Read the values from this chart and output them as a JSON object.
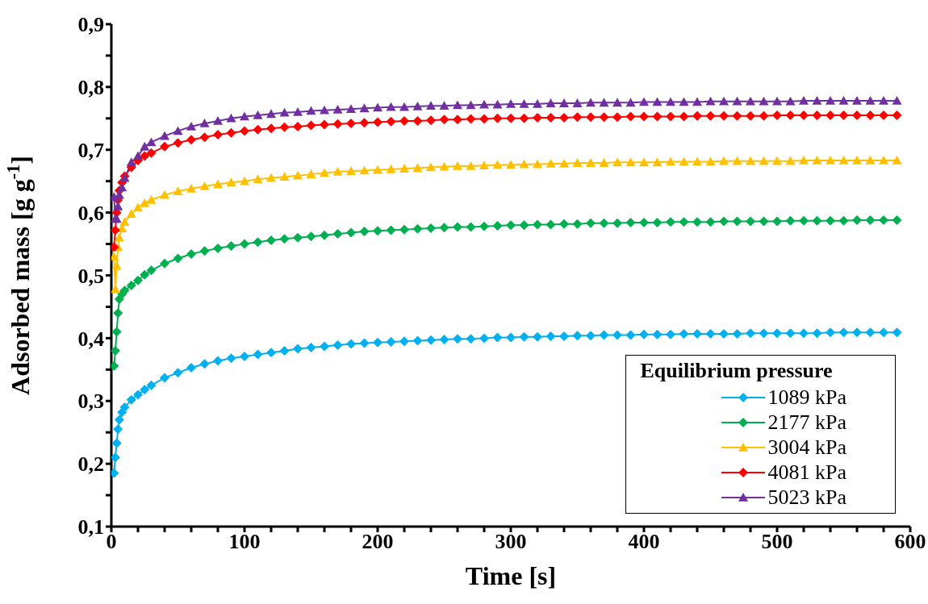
{
  "chart_data": {
    "type": "line",
    "xlabel": "Time [s]",
    "ylabel": "Adsorbed mass [g g$^{-1}$]",
    "legend_title": "Equilibrium pressure",
    "legend": "bottom right",
    "x": [
      2,
      3,
      4,
      5,
      6,
      8,
      10,
      15,
      20,
      25,
      30,
      40,
      50,
      60,
      70,
      80,
      90,
      100,
      110,
      120,
      130,
      140,
      150,
      160,
      170,
      180,
      190,
      200,
      210,
      220,
      230,
      240,
      250,
      260,
      270,
      280,
      290,
      300,
      310,
      320,
      330,
      340,
      350,
      360,
      370,
      380,
      390,
      400,
      410,
      420,
      430,
      440,
      450,
      460,
      470,
      480,
      490,
      500,
      510,
      520,
      530,
      540,
      550,
      560,
      570,
      580,
      590
    ],
    "xlim": [
      0,
      600
    ],
    "xticks": [
      0,
      {
        "value": 20,
        "label": null
      },
      {
        "value": 40,
        "label": null
      },
      {
        "value": 60,
        "label": null
      },
      {
        "value": 80,
        "label": null
      },
      100,
      {
        "value": 120,
        "label": null
      },
      {
        "value": 140,
        "label": null
      },
      {
        "value": 160,
        "label": null
      },
      {
        "value": 180,
        "label": null
      },
      200,
      {
        "value": 220,
        "label": null
      },
      {
        "value": 240,
        "label": null
      },
      {
        "value": 260,
        "label": null
      },
      {
        "value": 280,
        "label": null
      },
      300,
      {
        "value": 320,
        "label": null
      },
      {
        "value": 340,
        "label": null
      },
      {
        "value": 360,
        "label": null
      },
      {
        "value": 380,
        "label": null
      },
      400,
      {
        "value": 420,
        "label": null
      },
      {
        "value": 440,
        "label": null
      },
      {
        "value": 460,
        "label": null
      },
      {
        "value": 480,
        "label": null
      },
      500,
      {
        "value": 520,
        "label": null
      },
      {
        "value": 540,
        "label": null
      },
      {
        "value": 560,
        "label": null
      },
      {
        "value": 580,
        "label": null
      },
      600
    ],
    "ylim": [
      0.1,
      0.9
    ],
    "yticks": [
      {
        "value": 0.1,
        "label": "0,1"
      },
      {
        "value": 0.15,
        "label": null
      },
      {
        "value": 0.2,
        "label": "0,2"
      },
      {
        "value": 0.25,
        "label": null
      },
      {
        "value": 0.3,
        "label": "0,3"
      },
      {
        "value": 0.35,
        "label": null
      },
      {
        "value": 0.4,
        "label": "0,4"
      },
      {
        "value": 0.45,
        "label": null
      },
      {
        "value": 0.5,
        "label": "0,5"
      },
      {
        "value": 0.55,
        "label": null
      },
      {
        "value": 0.6,
        "label": "0,6"
      },
      {
        "value": 0.65,
        "label": null
      },
      {
        "value": 0.7,
        "label": "0,7"
      },
      {
        "value": 0.75,
        "label": null
      },
      {
        "value": 0.8,
        "label": "0,8"
      },
      {
        "value": 0.85,
        "label": null
      },
      {
        "value": 0.9,
        "label": "0,9"
      }
    ],
    "series": [
      {
        "name": "1089 kPa",
        "color": "#00b0f0",
        "marker": "diamond",
        "values": [
          0.185,
          0.21,
          0.233,
          0.255,
          0.27,
          0.282,
          0.29,
          0.302,
          0.31,
          0.318,
          0.325,
          0.337,
          0.345,
          0.353,
          0.359,
          0.364,
          0.368,
          0.371,
          0.374,
          0.377,
          0.38,
          0.383,
          0.385,
          0.387,
          0.389,
          0.391,
          0.392,
          0.393,
          0.394,
          0.395,
          0.396,
          0.397,
          0.398,
          0.399,
          0.399,
          0.4,
          0.401,
          0.401,
          0.402,
          0.402,
          0.403,
          0.403,
          0.404,
          0.404,
          0.405,
          0.405,
          0.405,
          0.406,
          0.406,
          0.406,
          0.407,
          0.407,
          0.407,
          0.407,
          0.407,
          0.408,
          0.408,
          0.408,
          0.408,
          0.408,
          0.408,
          0.409,
          0.409,
          0.409,
          0.409,
          0.409,
          0.409
        ]
      },
      {
        "name": "2177 kPa",
        "color": "#00b050",
        "marker": "diamond",
        "values": [
          0.356,
          0.38,
          0.41,
          0.44,
          0.462,
          0.47,
          0.476,
          0.484,
          0.492,
          0.501,
          0.508,
          0.519,
          0.527,
          0.534,
          0.539,
          0.543,
          0.547,
          0.55,
          0.553,
          0.556,
          0.558,
          0.56,
          0.562,
          0.564,
          0.566,
          0.568,
          0.57,
          0.571,
          0.572,
          0.573,
          0.574,
          0.575,
          0.576,
          0.577,
          0.577,
          0.578,
          0.579,
          0.58,
          0.58,
          0.581,
          0.581,
          0.582,
          0.582,
          0.583,
          0.583,
          0.583,
          0.584,
          0.584,
          0.584,
          0.585,
          0.585,
          0.585,
          0.585,
          0.586,
          0.586,
          0.586,
          0.586,
          0.586,
          0.587,
          0.587,
          0.587,
          0.587,
          0.587,
          0.588,
          0.588,
          0.588,
          0.588
        ]
      },
      {
        "name": "3004 kPa",
        "color": "#ffc000",
        "marker": "triangle",
        "values": [
          0.53,
          0.478,
          0.515,
          0.545,
          0.56,
          0.575,
          0.585,
          0.598,
          0.608,
          0.615,
          0.62,
          0.628,
          0.634,
          0.638,
          0.642,
          0.645,
          0.648,
          0.65,
          0.653,
          0.655,
          0.657,
          0.659,
          0.661,
          0.663,
          0.665,
          0.666,
          0.667,
          0.668,
          0.669,
          0.67,
          0.671,
          0.672,
          0.673,
          0.674,
          0.674,
          0.675,
          0.676,
          0.676,
          0.677,
          0.677,
          0.678,
          0.678,
          0.679,
          0.679,
          0.679,
          0.68,
          0.68,
          0.68,
          0.68,
          0.681,
          0.681,
          0.681,
          0.681,
          0.682,
          0.682,
          0.682,
          0.682,
          0.682,
          0.682,
          0.683,
          0.683,
          0.683,
          0.683,
          0.683,
          0.683,
          0.683,
          0.683
        ]
      },
      {
        "name": "4081 kPa",
        "color": "#ff0000",
        "marker": "diamond",
        "values": [
          0.545,
          0.572,
          0.6,
          0.62,
          0.635,
          0.648,
          0.658,
          0.672,
          0.683,
          0.69,
          0.695,
          0.705,
          0.711,
          0.716,
          0.72,
          0.724,
          0.727,
          0.73,
          0.732,
          0.734,
          0.736,
          0.737,
          0.739,
          0.74,
          0.741,
          0.742,
          0.743,
          0.744,
          0.745,
          0.746,
          0.746,
          0.747,
          0.748,
          0.748,
          0.749,
          0.749,
          0.75,
          0.75,
          0.75,
          0.751,
          0.751,
          0.751,
          0.752,
          0.752,
          0.752,
          0.752,
          0.753,
          0.753,
          0.753,
          0.753,
          0.753,
          0.754,
          0.754,
          0.754,
          0.754,
          0.754,
          0.754,
          0.755,
          0.755,
          0.755,
          0.755,
          0.755,
          0.755,
          0.755,
          0.755,
          0.755,
          0.755
        ]
      },
      {
        "name": "5023 kPa",
        "color": "#7030a0",
        "marker": "triangle",
        "values": [
          0.625,
          0.59,
          0.59,
          0.61,
          0.628,
          0.64,
          0.655,
          0.68,
          0.69,
          0.705,
          0.712,
          0.722,
          0.73,
          0.737,
          0.742,
          0.746,
          0.75,
          0.753,
          0.755,
          0.757,
          0.759,
          0.76,
          0.762,
          0.763,
          0.764,
          0.765,
          0.766,
          0.767,
          0.768,
          0.768,
          0.769,
          0.77,
          0.77,
          0.771,
          0.771,
          0.772,
          0.772,
          0.773,
          0.773,
          0.773,
          0.774,
          0.774,
          0.774,
          0.775,
          0.775,
          0.775,
          0.775,
          0.776,
          0.776,
          0.776,
          0.776,
          0.776,
          0.777,
          0.777,
          0.777,
          0.777,
          0.777,
          0.777,
          0.777,
          0.778,
          0.778,
          0.778,
          0.778,
          0.778,
          0.778,
          0.778,
          0.778
        ]
      }
    ]
  }
}
